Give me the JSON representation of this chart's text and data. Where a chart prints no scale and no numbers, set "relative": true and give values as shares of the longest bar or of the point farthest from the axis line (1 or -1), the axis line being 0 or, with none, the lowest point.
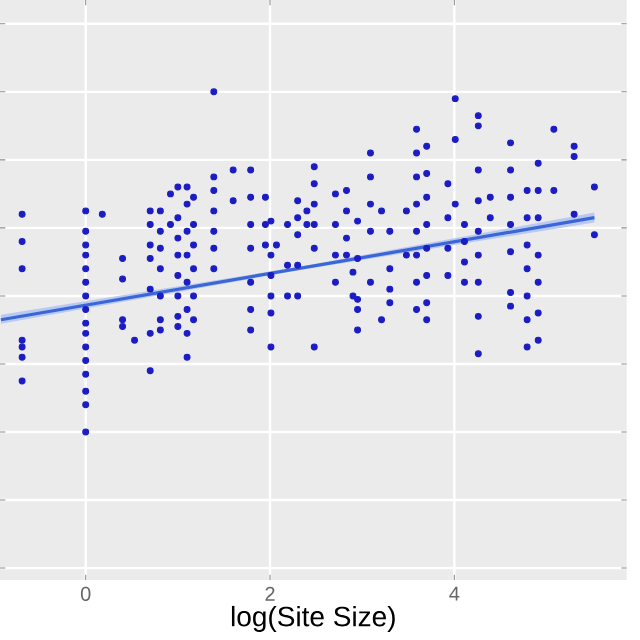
{
  "chart_data": {
    "type": "scatter",
    "xlabel": "log(Site Size)",
    "relative": true,
    "xlim": [
      -0.93,
      5.87
    ],
    "xticks": [
      0,
      2,
      4
    ],
    "grid": true,
    "tick_labels": "x",
    "series": [
      {
        "type": "scatter",
        "marker": "circle",
        "color": "#1c1cc4",
        "x": [
          -0.69,
          -0.69,
          -0.69,
          -0.69,
          -0.69,
          -0.69,
          -0.69,
          0,
          0,
          0,
          0,
          0,
          0,
          0,
          0,
          0,
          0,
          0,
          0,
          0,
          0,
          0,
          0,
          0.18,
          0.4,
          0.4,
          0.4,
          0.4,
          0.53,
          0.7,
          0.7,
          0.7,
          0.7,
          0.7,
          0.7,
          0.7,
          0.81,
          0.81,
          0.81,
          0.81,
          0.81,
          0.81,
          0.81,
          0.92,
          0.92,
          1.0,
          1.0,
          1.0,
          1.0,
          1.0,
          1.0,
          1.0,
          1.0,
          1.1,
          1.1,
          1.1,
          1.1,
          1.1,
          1.1,
          1.1,
          1.1,
          1.17,
          1.17,
          1.17,
          1.17,
          1.17,
          1.17,
          1.39,
          1.39,
          1.39,
          1.39,
          1.39,
          1.39,
          1.39,
          1.6,
          1.6,
          1.79,
          1.79,
          1.79,
          1.79,
          1.79,
          1.79,
          1.79,
          1.95,
          1.95,
          1.95,
          2.01,
          2.01,
          2.01,
          2.01,
          2.01,
          2.01,
          2.07,
          2.19,
          2.19,
          2.19,
          2.3,
          2.3,
          2.3,
          2.3,
          2.3,
          2.4,
          2.4,
          2.48,
          2.48,
          2.48,
          2.48,
          2.48,
          2.48,
          2.71,
          2.71,
          2.71,
          2.71,
          2.83,
          2.83,
          2.83,
          2.83,
          2.9,
          2.9,
          2.95,
          2.95,
          2.95,
          2.95,
          2.95,
          3.09,
          3.09,
          3.09,
          3.09,
          3.09,
          3.21,
          3.21,
          3.3,
          3.3,
          3.3,
          3.3,
          3.48,
          3.48,
          3.59,
          3.59,
          3.59,
          3.59,
          3.59,
          3.59,
          3.59,
          3.59,
          3.7,
          3.7,
          3.7,
          3.7,
          3.7,
          3.7,
          3.7,
          3.7,
          3.93,
          3.93,
          3.93,
          3.93,
          4.01,
          4.01,
          4.01,
          4.11,
          4.11,
          4.11,
          4.11,
          4.26,
          4.26,
          4.26,
          4.26,
          4.26,
          4.26,
          4.26,
          4.26,
          4.26,
          4.39,
          4.39,
          4.61,
          4.61,
          4.61,
          4.61,
          4.61,
          4.61,
          4.61,
          4.79,
          4.79,
          4.79,
          4.79,
          4.79,
          4.79,
          4.79,
          4.91,
          4.91,
          4.91,
          4.91,
          4.91,
          4.91,
          4.91,
          5.08,
          5.08,
          5.3,
          5.3,
          5.3,
          5.52,
          5.52
        ],
        "values": [
          0.64,
          0.56,
          0.48,
          0.27,
          0.25,
          0.22,
          0.15,
          0.65,
          0.59,
          0.55,
          0.52,
          0.48,
          0.44,
          0.4,
          0.36,
          0.32,
          0.29,
          0.25,
          0.21,
          0.17,
          0.12,
          0.08,
          0,
          0.64,
          0.51,
          0.45,
          0.33,
          0.31,
          0.27,
          0.65,
          0.61,
          0.55,
          0.51,
          0.42,
          0.29,
          0.18,
          0.65,
          0.59,
          0.54,
          0.48,
          0.4,
          0.33,
          0.3,
          0.7,
          0.61,
          0.72,
          0.63,
          0.57,
          0.52,
          0.46,
          0.4,
          0.34,
          0.31,
          0.72,
          0.67,
          0.59,
          0.52,
          0.44,
          0.36,
          0.29,
          0.22,
          0.69,
          0.61,
          0.55,
          0.48,
          0.4,
          0.33,
          1.0,
          0.75,
          0.71,
          0.65,
          0.59,
          0.54,
          0.48,
          0.77,
          0.68,
          0.77,
          0.69,
          0.61,
          0.54,
          0.44,
          0.36,
          0.3,
          0.69,
          0.61,
          0.55,
          0.62,
          0.52,
          0.46,
          0.4,
          0.35,
          0.25,
          0.55,
          0.61,
          0.49,
          0.4,
          0.68,
          0.63,
          0.58,
          0.49,
          0.4,
          0.65,
          0.61,
          0.78,
          0.73,
          0.67,
          0.61,
          0.54,
          0.25,
          0.7,
          0.61,
          0.52,
          0.44,
          0.71,
          0.65,
          0.57,
          0.52,
          0.47,
          0.4,
          0.62,
          0.51,
          0.39,
          0.36,
          0.3,
          0.82,
          0.75,
          0.67,
          0.59,
          0.44,
          0.65,
          0.33,
          0.59,
          0.48,
          0.42,
          0.38,
          0.65,
          0.52,
          0.89,
          0.82,
          0.75,
          0.67,
          0.59,
          0.52,
          0.44,
          0.36,
          0.84,
          0.76,
          0.69,
          0.61,
          0.54,
          0.46,
          0.38,
          0.33,
          0.73,
          0.63,
          0.54,
          0.46,
          0.98,
          0.86,
          0.67,
          0.61,
          0.56,
          0.5,
          0.44,
          0.93,
          0.9,
          0.77,
          0.68,
          0.59,
          0.52,
          0.44,
          0.34,
          0.23,
          0.69,
          0.63,
          0.85,
          0.77,
          0.69,
          0.61,
          0.53,
          0.41,
          0.37,
          0.71,
          0.63,
          0.55,
          0.48,
          0.4,
          0.33,
          0.25,
          0.79,
          0.71,
          0.63,
          0.52,
          0.44,
          0.35,
          0.27,
          0.89,
          0.71,
          0.84,
          0.81,
          0.64,
          0.72,
          0.58
        ]
      },
      {
        "type": "line",
        "color": "#3a66d8",
        "x": [
          -0.92,
          2.3,
          5.52
        ],
        "values": [
          0.33,
          0.48,
          0.63
        ],
        "lower": [
          0.318,
          0.475,
          0.616
        ],
        "upper": [
          0.345,
          0.485,
          0.645
        ]
      }
    ]
  }
}
